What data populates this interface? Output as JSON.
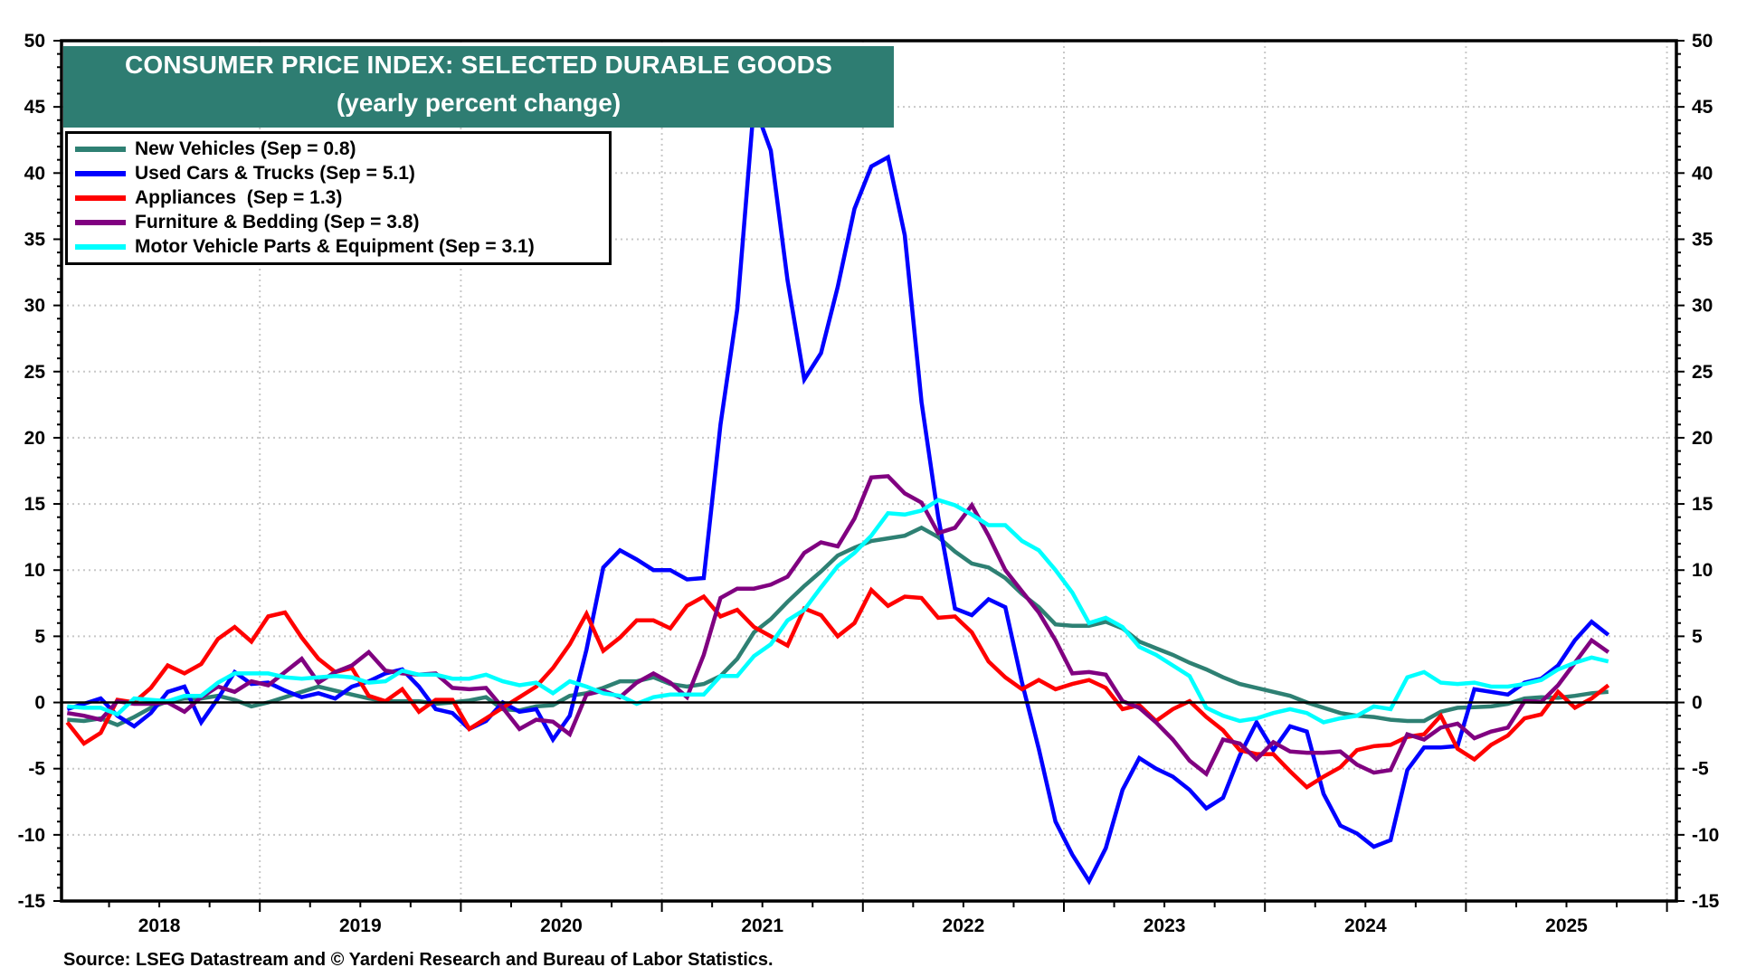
{
  "title": {
    "line1": "CONSUMER PRICE INDEX: SELECTED DURABLE GOODS",
    "line2": "(yearly percent change)"
  },
  "legend": [
    {
      "label": "New Vehicles (Sep = 0.8)",
      "color": "#2e8073"
    },
    {
      "label": "Used Cars & Trucks (Sep = 5.1)",
      "color": "#0000ff"
    },
    {
      "label": "Appliances  (Sep = 1.3)",
      "color": "#ff0000"
    },
    {
      "label": "Furniture & Bedding (Sep = 3.8)",
      "color": "#800080"
    },
    {
      "label": "Motor Vehicle Parts & Equipment (Sep = 3.1)",
      "color": "#00ffff"
    }
  ],
  "source": "Source: LSEG Datastream and © Yardeni Research and Bureau of Labor Statistics.",
  "chart_data": {
    "type": "line",
    "title": "CONSUMER PRICE INDEX: SELECTED DURABLE GOODS (yearly percent change)",
    "x_start": "2018-01",
    "x_end": "2025-09",
    "frequency": "monthly",
    "xlabel": "",
    "ylabel": "",
    "ylim": [
      -15,
      50
    ],
    "yticks": [
      "50",
      "45",
      "40",
      "35",
      "30",
      "25",
      "20",
      "15",
      "10",
      "5",
      "0",
      "-5",
      "-10",
      "-15"
    ],
    "ytick_values": [
      50,
      45,
      40,
      35,
      30,
      25,
      20,
      15,
      10,
      5,
      0,
      -5,
      -10,
      -15
    ],
    "xtick_labels": [
      "2018",
      "2019",
      "2020",
      "2021",
      "2022",
      "2023",
      "2024",
      "2025"
    ],
    "grid": true,
    "legend_position": "top-left",
    "series": [
      {
        "name": "New Vehicles",
        "color": "#2e8073",
        "values": [
          -1.3,
          -1.4,
          -1.2,
          -1.7,
          -1.1,
          -0.4,
          0.1,
          0.3,
          0.3,
          0.5,
          0.2,
          -0.3,
          0,
          0.4,
          0.8,
          1.2,
          0.9,
          0.6,
          0.3,
          0.1,
          0.1,
          0.1,
          -0.1,
          0,
          0.15,
          0.4,
          -0.5,
          -0.6,
          -0.3,
          -0.2,
          0.5,
          0.7,
          1.1,
          1.6,
          1.6,
          1.9,
          1.4,
          1.2,
          1.4,
          2.0,
          3.3,
          5.3,
          6.3,
          7.6,
          8.8,
          9.9,
          11.1,
          11.7,
          12.2,
          12.4,
          12.6,
          13.2,
          12.5,
          11.4,
          10.5,
          10.2,
          9.4,
          8.2,
          7.2,
          5.9,
          5.8,
          5.8,
          6.1,
          5.6,
          4.6,
          4.1,
          3.6,
          3.0,
          2.5,
          1.9,
          1.4,
          1.1,
          0.8,
          0.5,
          0,
          -0.4,
          -0.8,
          -1.0,
          -1.1,
          -1.3,
          -1.4,
          -1.4,
          -0.7,
          -0.4,
          -0.35,
          -0.3,
          -0.1,
          0.3,
          0.4,
          0.35,
          0.5,
          0.7,
          0.8
        ]
      },
      {
        "name": "Used Cars & Trucks",
        "color": "#0000ff",
        "values": [
          -0.5,
          -0.1,
          0.3,
          -1.0,
          -1.8,
          -0.8,
          0.8,
          1.2,
          -1.5,
          0.3,
          2.3,
          1.4,
          1.5,
          0.9,
          0.4,
          0.7,
          0.3,
          1.2,
          1.6,
          2.2,
          2.5,
          1.2,
          -0.5,
          -0.8,
          -2.0,
          -1.4,
          0,
          -0.7,
          -0.5,
          -2.8,
          -1.0,
          4.0,
          10.2,
          11.5,
          10.8,
          10.0,
          10.0,
          9.3,
          9.4,
          21.0,
          29.7,
          45.2,
          41.7,
          31.9,
          24.4,
          26.4,
          31.4,
          37.3,
          40.5,
          41.2,
          35.3,
          22.7,
          14.0,
          7.1,
          6.6,
          7.8,
          7.2,
          1.5,
          -3.5,
          -9.0,
          -11.5,
          -13.5,
          -11.0,
          -6.6,
          -4.2,
          -5.0,
          -5.6,
          -6.6,
          -8.0,
          -7.2,
          -4.0,
          -1.5,
          -3.6,
          -1.8,
          -2.2,
          -6.9,
          -9.3,
          -9.9,
          -10.9,
          -10.4,
          -5.1,
          -3.4,
          -3.4,
          -3.3,
          1.0,
          0.8,
          0.6,
          1.5,
          1.8,
          2.8,
          4.7,
          6.1,
          5.1
        ]
      },
      {
        "name": "Appliances",
        "color": "#ff0000",
        "values": [
          -1.5,
          -3.1,
          -2.3,
          0.2,
          0,
          1.1,
          2.8,
          2.2,
          2.9,
          4.8,
          5.7,
          4.6,
          6.5,
          6.8,
          4.9,
          3.3,
          2.3,
          2.6,
          0.5,
          0.1,
          1.0,
          -0.7,
          0.2,
          0.2,
          -2.0,
          -1.2,
          -0.4,
          0.4,
          1.2,
          2.6,
          4.4,
          6.7,
          3.9,
          4.9,
          6.2,
          6.2,
          5.6,
          7.3,
          8.0,
          6.5,
          7.0,
          5.7,
          5.0,
          4.3,
          7.1,
          6.6,
          5.0,
          6.0,
          8.5,
          7.3,
          8.0,
          7.9,
          6.4,
          6.5,
          5.3,
          3.1,
          1.9,
          1.0,
          1.7,
          1.0,
          1.4,
          1.7,
          1.1,
          -0.5,
          -0.2,
          -1.4,
          -0.5,
          0.1,
          -1.1,
          -2.1,
          -3.6,
          -3.9,
          -3.9,
          -5.2,
          -6.4,
          -5.6,
          -4.9,
          -3.6,
          -3.3,
          -3.2,
          -2.6,
          -2.4,
          -1.0,
          -3.5,
          -4.3,
          -3.2,
          -2.5,
          -1.2,
          -0.9,
          0.8,
          -0.4,
          0.3,
          1.3
        ]
      },
      {
        "name": "Furniture & Bedding",
        "color": "#800080",
        "values": [
          -0.8,
          -1.0,
          -1.3,
          0.1,
          -0.1,
          -0.1,
          0,
          -0.7,
          0.4,
          1.2,
          0.8,
          1.6,
          1.3,
          2.3,
          3.3,
          1.5,
          2.3,
          2.8,
          3.8,
          2.4,
          2.2,
          2.1,
          2.2,
          1.1,
          1.0,
          1.1,
          -0.4,
          -2.0,
          -1.3,
          -1.45,
          -2.4,
          0.6,
          0.9,
          0.4,
          1.5,
          2.2,
          1.5,
          0.4,
          3.6,
          7.9,
          8.6,
          8.6,
          8.9,
          9.5,
          11.3,
          12.1,
          11.8,
          13.9,
          17.0,
          17.1,
          15.8,
          15.1,
          12.8,
          13.2,
          14.9,
          12.6,
          10.0,
          8.4,
          6.8,
          4.7,
          2.2,
          2.3,
          2.1,
          0.1,
          -0.4,
          -1.5,
          -2.8,
          -4.4,
          -5.4,
          -2.8,
          -3.1,
          -4.3,
          -3.0,
          -3.7,
          -3.8,
          -3.8,
          -3.7,
          -4.7,
          -5.3,
          -5.1,
          -2.4,
          -2.8,
          -1.9,
          -1.6,
          -2.7,
          -2.2,
          -1.9,
          0.1,
          0.05,
          1.3,
          3.0,
          4.7,
          3.8
        ]
      },
      {
        "name": "Motor Vehicle Parts & Equipment",
        "color": "#00ffff",
        "values": [
          -0.3,
          -0.4,
          -0.4,
          -0.9,
          0.3,
          0.2,
          0.1,
          0.5,
          0.5,
          1.5,
          2.2,
          2.2,
          2.2,
          1.9,
          1.8,
          1.9,
          2.0,
          1.9,
          1.5,
          1.6,
          2.4,
          2.1,
          2.1,
          1.8,
          1.8,
          2.1,
          1.6,
          1.3,
          1.5,
          0.7,
          1.6,
          1.2,
          0.7,
          0.5,
          -0.1,
          0.4,
          0.6,
          0.6,
          0.6,
          2.0,
          2.0,
          3.5,
          4.4,
          6.2,
          7.0,
          8.7,
          10.3,
          11.3,
          12.6,
          14.3,
          14.2,
          14.5,
          15.3,
          14.9,
          14.2,
          13.4,
          13.4,
          12.2,
          11.5,
          10.0,
          8.3,
          6.0,
          6.4,
          5.7,
          4.2,
          3.6,
          2.8,
          2.0,
          -0.4,
          -1.0,
          -1.4,
          -1.2,
          -0.8,
          -0.5,
          -0.8,
          -1.5,
          -1.2,
          -1.0,
          -0.3,
          -0.5,
          1.9,
          2.3,
          1.5,
          1.4,
          1.5,
          1.2,
          1.2,
          1.4,
          1.7,
          2.5,
          3.0,
          3.4,
          3.1
        ]
      }
    ]
  }
}
